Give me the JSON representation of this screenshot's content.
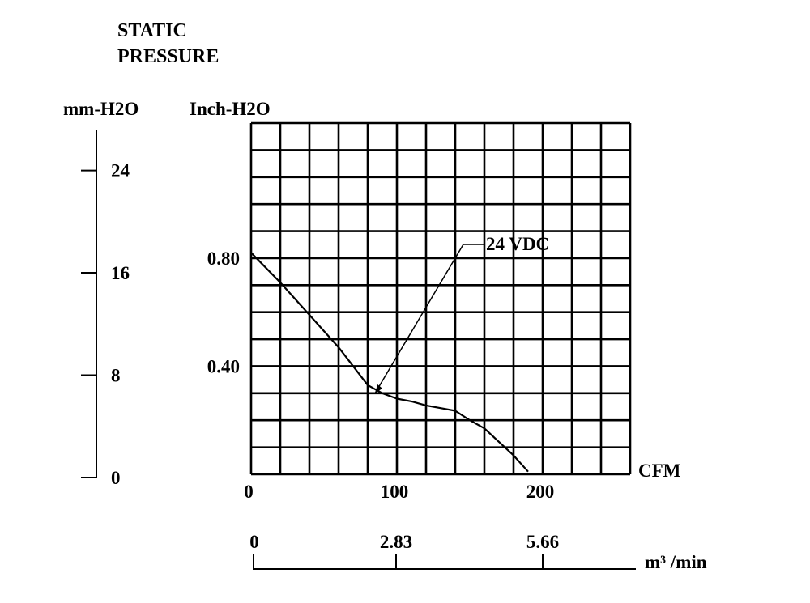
{
  "chart_data": {
    "type": "line",
    "title_lines": [
      "STATIC",
      "PRESSURE"
    ],
    "left_axis": {
      "unit_label": "mm-H2O",
      "ticks": [
        "24",
        "16",
        "8",
        "0"
      ],
      "range": [
        0,
        27.2
      ]
    },
    "y_axis": {
      "unit_label": "Inch-H2O",
      "ticks": [
        "0.80",
        "0.40"
      ],
      "range": [
        0,
        1.3
      ]
    },
    "x_axis": {
      "unit_label": "CFM",
      "ticks": [
        "0",
        "100",
        "200"
      ],
      "range": [
        0,
        260
      ]
    },
    "metric_axis": {
      "unit_label": "m³ /min",
      "ticks": [
        "0",
        "2.83",
        "5.66"
      ]
    },
    "grid": true,
    "series": [
      {
        "name": "24 VDC",
        "x": [
          0,
          20,
          40,
          60,
          80,
          90,
          100,
          110,
          120,
          130,
          140,
          150,
          160,
          170,
          180,
          190
        ],
        "y": [
          0.82,
          0.71,
          0.59,
          0.47,
          0.33,
          0.3,
          0.28,
          0.27,
          0.255,
          0.245,
          0.235,
          0.2,
          0.17,
          0.12,
          0.07,
          0.01
        ]
      }
    ],
    "annotation": {
      "text": "24 VDC",
      "points_to_x": 85,
      "points_to_y": 0.3
    }
  }
}
